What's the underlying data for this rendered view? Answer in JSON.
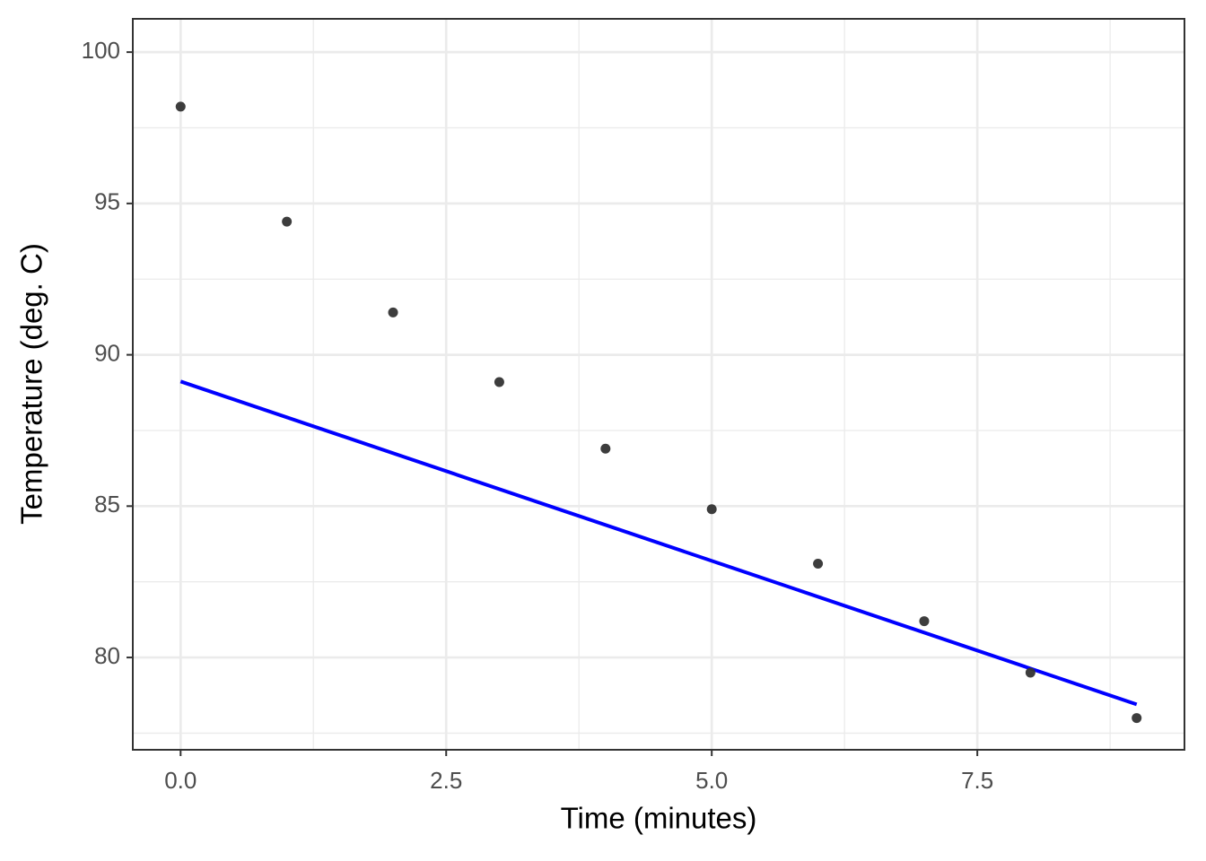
{
  "chart_data": {
    "type": "scatter",
    "x_label": "Time (minutes)",
    "y_label": "Temperature (deg. C)",
    "x": [
      0,
      1,
      2,
      3,
      4,
      5,
      6,
      7,
      8,
      9
    ],
    "y": [
      98.2,
      94.4,
      91.4,
      89.1,
      86.9,
      84.9,
      83.1,
      81.2,
      79.5,
      78.0
    ],
    "color": "#333333",
    "fit": {
      "x": [
        0,
        9
      ],
      "y": [
        89.12,
        78.45
      ],
      "color": "#0000ff"
    },
    "xlim": [
      -0.45,
      9.45
    ],
    "ylim": [
      76.95,
      101.1
    ],
    "xticks": [
      {
        "value": 0,
        "label": "0.0"
      },
      2.5,
      {
        "value": 5,
        "label": "5.0"
      },
      7.5
    ],
    "yticks": [
      80,
      85,
      90,
      95,
      100
    ],
    "minor_xticks": [
      1.25,
      3.75,
      6.25,
      8.75
    ],
    "minor_yticks": [
      77.5,
      82.5,
      87.5,
      92.5,
      97.5
    ],
    "grid": true
  }
}
